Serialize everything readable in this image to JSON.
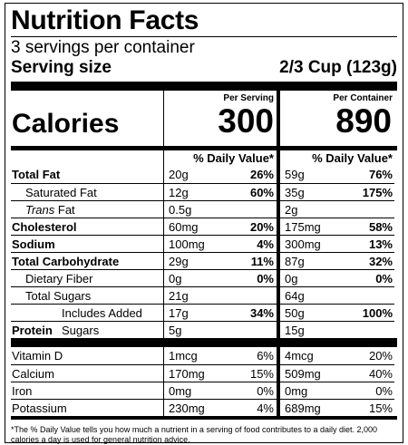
{
  "title": "Nutrition Facts",
  "servings": "3 servings per container",
  "serving_size_label": "Serving size",
  "serving_size_value": "2/3 Cup (123g)",
  "per_serving_label": "Per Serving",
  "per_container_label": "Per Container",
  "calories_label": "Calories",
  "calories_per_serving": "300",
  "calories_per_container": "890",
  "dv_header": "% Daily Value*",
  "nutrients": [
    {
      "name": "Total Fat",
      "style": "bold",
      "s_amt": "20g",
      "s_pct": "26%",
      "c_amt": "59g",
      "c_pct": "76%"
    },
    {
      "name": "Saturated Fat",
      "style": "indent",
      "s_amt": "12g",
      "s_pct": "60%",
      "c_amt": "35g",
      "c_pct": "175%"
    },
    {
      "name": "Trans",
      "name_suffix": " Fat",
      "style": "indent-italic",
      "s_amt": "0.5g",
      "s_pct": "",
      "c_amt": "2g",
      "c_pct": ""
    },
    {
      "name": "Cholesterol",
      "style": "bold",
      "s_amt": "60mg",
      "s_pct": "20%",
      "c_amt": "175mg",
      "c_pct": "58%"
    },
    {
      "name": "Sodium",
      "style": "bold",
      "s_amt": "100mg",
      "s_pct": "4%",
      "c_amt": "300mg",
      "c_pct": "13%"
    },
    {
      "name": "Total Carbohydrate",
      "style": "bold",
      "s_amt": "29g",
      "s_pct": "11%",
      "c_amt": "87g",
      "c_pct": "32%"
    },
    {
      "name": "Dietary Fiber",
      "style": "indent",
      "s_amt": "0g",
      "s_pct": "0%",
      "c_amt": "0g",
      "c_pct": "0%"
    },
    {
      "name": "Total Sugars",
      "style": "indent",
      "s_amt": "21g",
      "s_pct": "",
      "c_amt": "64g",
      "c_pct": ""
    },
    {
      "name": "Includes Added Sugars",
      "style": "indent2",
      "s_amt": "17g",
      "s_pct": "34%",
      "c_amt": "50g",
      "c_pct": "100%"
    },
    {
      "name": "Protein",
      "style": "bold",
      "s_amt": "5g",
      "s_pct": "",
      "c_amt": "15g",
      "c_pct": ""
    }
  ],
  "vitamins": [
    {
      "name": "Vitamin D",
      "s_amt": "1mcg",
      "s_pct": "6%",
      "c_amt": "4mcg",
      "c_pct": "20%"
    },
    {
      "name": "Calcium",
      "s_amt": "170mg",
      "s_pct": "15%",
      "c_amt": "509mg",
      "c_pct": "40%"
    },
    {
      "name": "Iron",
      "s_amt": "0mg",
      "s_pct": "0%",
      "c_amt": "0mg",
      "c_pct": "0%"
    },
    {
      "name": "Potassium",
      "s_amt": "230mg",
      "s_pct": "4%",
      "c_amt": "689mg",
      "c_pct": "15%"
    }
  ],
  "footnote": "*The % Daily Value tells you how much a nutrient in a serving of food contributes to a daily diet. 2,000 calories a day is used for general nutrition advice."
}
